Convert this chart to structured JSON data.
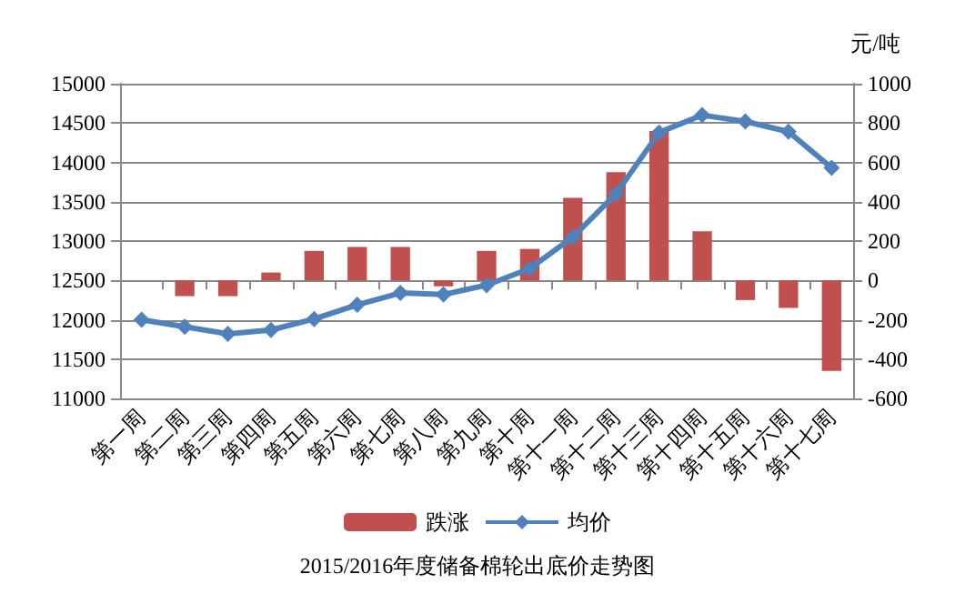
{
  "chart_data": {
    "type": "bar",
    "title": "2015/2016年度储备棉轮出底价走势图",
    "annotations": [
      "元/吨"
    ],
    "categories": [
      "第一周",
      "第二周",
      "第三周",
      "第四周",
      "第五周",
      "第六周",
      "第七周",
      "第八周",
      "第九周",
      "第十周",
      "第十一周",
      "第十二周",
      "第十三周",
      "第十四周",
      "第十五周",
      "第十六周",
      "第十七周"
    ],
    "series": [
      {
        "name": "跌涨",
        "axis": "y2",
        "color": "#c0504d",
        "values": [
          null,
          -80,
          -80,
          40,
          150,
          170,
          170,
          -30,
          150,
          160,
          420,
          550,
          760,
          250,
          -100,
          -140,
          -460
        ]
      },
      {
        "name": "均价",
        "type": "line",
        "color": "#4f81bd",
        "marker": "diamond",
        "values": [
          12000,
          11910,
          11820,
          11870,
          12010,
          12190,
          12340,
          12320,
          12440,
          12650,
          13050,
          13600,
          14380,
          14600,
          14520,
          14390,
          13930
        ]
      }
    ],
    "ylim": [
      11000,
      15000
    ],
    "yticks": [
      11000,
      11500,
      12000,
      12500,
      13000,
      13500,
      14000,
      14500,
      15000
    ],
    "y2lim": [
      -600,
      1000
    ],
    "y2ticks": [
      -600,
      -400,
      -200,
      0,
      200,
      400,
      600,
      800,
      1000
    ],
    "grid": "y",
    "legend": "bottom"
  }
}
